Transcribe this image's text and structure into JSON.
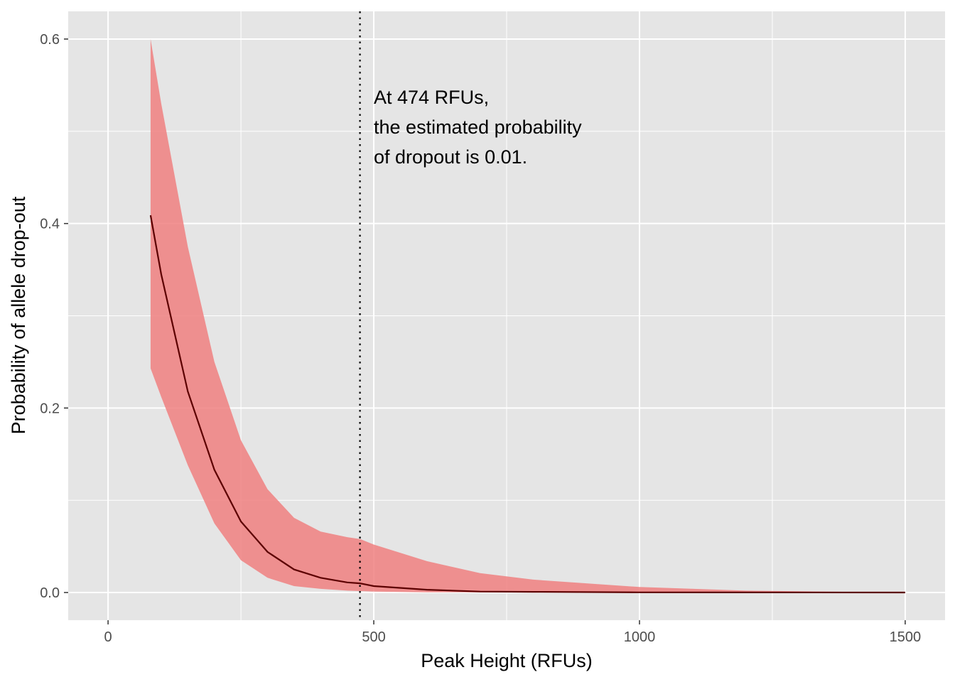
{
  "chart_data": {
    "type": "line",
    "xlabel": "Peak Height (RFUs)",
    "ylabel": "Probability of allele drop-out",
    "xlim": [
      -75,
      1575
    ],
    "ylim": [
      -0.03,
      0.63
    ],
    "x_ticks": [
      0,
      500,
      1000,
      1500
    ],
    "x_tick_labels": [
      "0",
      "500",
      "1000",
      "1500"
    ],
    "y_ticks": [
      0.0,
      0.2,
      0.4,
      0.6
    ],
    "y_tick_labels": [
      "0.0",
      "0.2",
      "0.4",
      "0.6"
    ],
    "grid": true,
    "vline": {
      "x": 474,
      "style": "dotted"
    },
    "annotation": {
      "x": 500,
      "y": 0.53,
      "lines": [
        "At 474 RFUs,",
        "the estimated probability",
        "of dropout is 0.01."
      ]
    },
    "series": [
      {
        "x": [
          80,
          100,
          150,
          200,
          250,
          300,
          350,
          400,
          450,
          474,
          500,
          600,
          700,
          800,
          1000,
          1200,
          1500
        ],
        "y": [
          0.409,
          0.345,
          0.218,
          0.133,
          0.077,
          0.044,
          0.025,
          0.016,
          0.011,
          0.01,
          0.007,
          0.003,
          0.001,
          0.0007,
          0.0002,
          0.0001,
          0.0
        ]
      }
    ],
    "ribbon": {
      "x": [
        80,
        100,
        150,
        200,
        250,
        300,
        350,
        400,
        450,
        474,
        500,
        600,
        700,
        800,
        1000,
        1200,
        1500
      ],
      "lower": [
        0.243,
        0.212,
        0.138,
        0.075,
        0.035,
        0.016,
        0.007,
        0.004,
        0.002,
        0.0016,
        0.001,
        0.0003,
        0.0001,
        0.0,
        0.0,
        0.0,
        0.0
      ],
      "upper": [
        0.6,
        0.53,
        0.375,
        0.25,
        0.165,
        0.112,
        0.081,
        0.066,
        0.06,
        0.058,
        0.052,
        0.034,
        0.021,
        0.014,
        0.006,
        0.002,
        0.0
      ]
    },
    "colors": {
      "panel": "#e5e5e5",
      "grid": "#ffffff",
      "ribbon": "#f08080",
      "line": "#5c0000",
      "vline": "#000000"
    }
  }
}
